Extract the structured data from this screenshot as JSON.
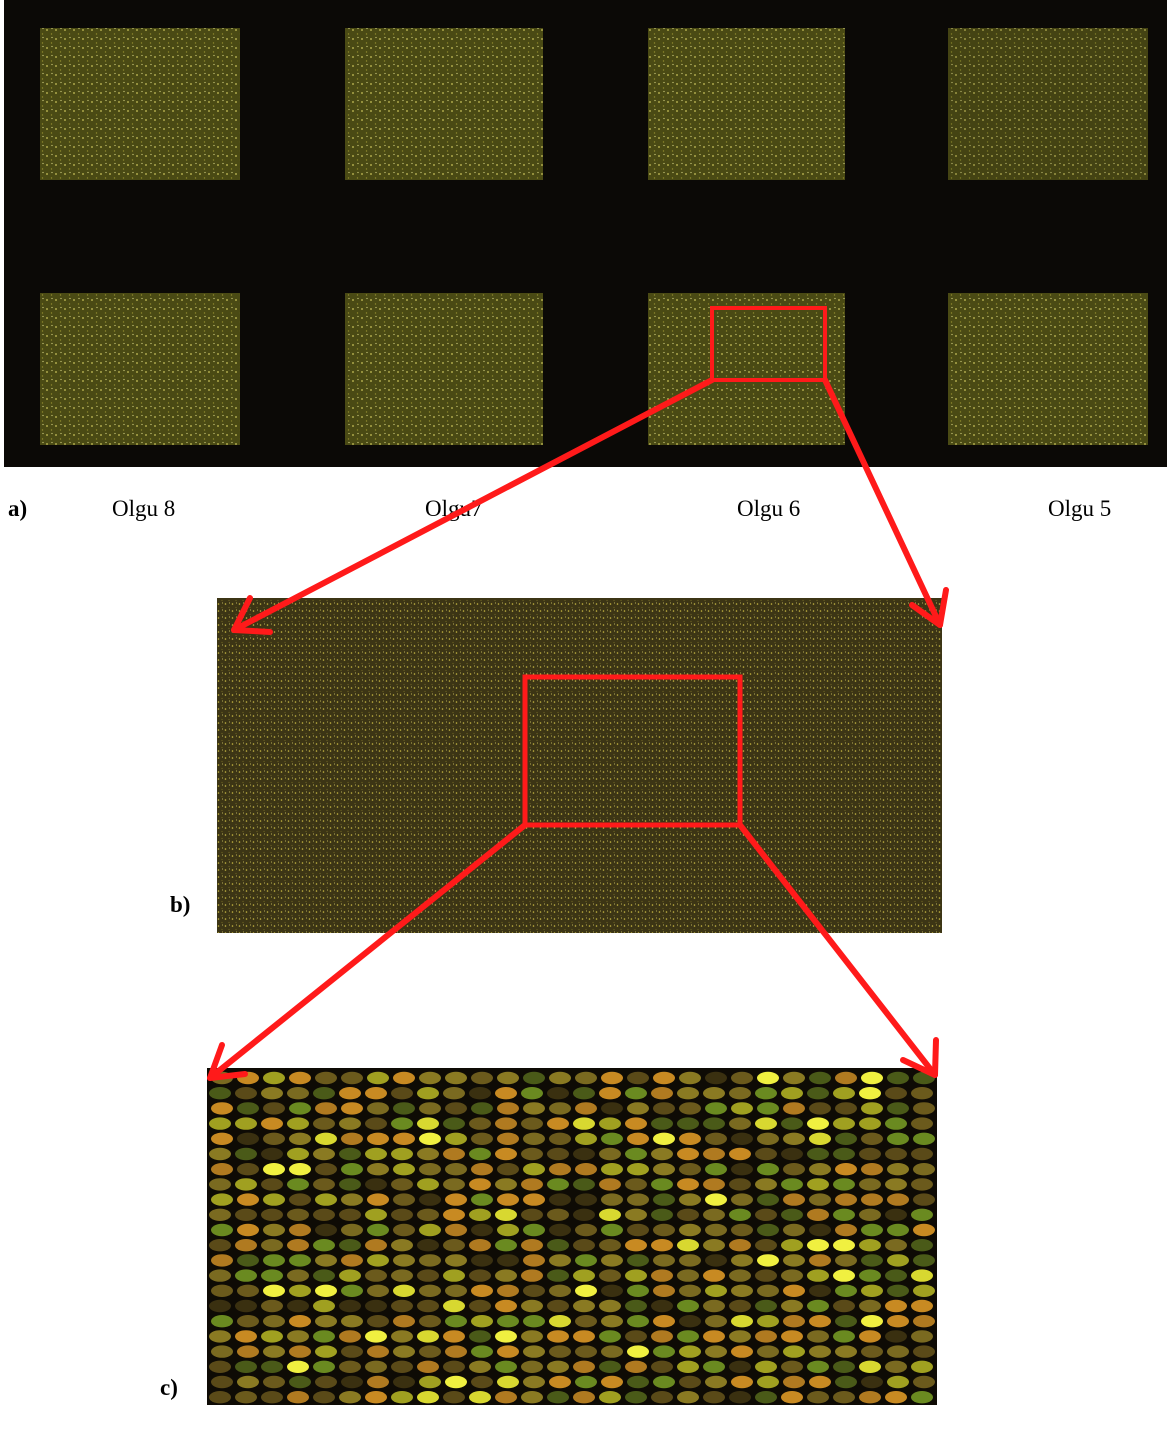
{
  "panel_a": {
    "label": "a)",
    "cases": [
      "Olgu 8",
      "Olgu7",
      "Olgu 6",
      "Olgu 5"
    ]
  },
  "panel_b": {
    "label": "b)"
  },
  "panel_c": {
    "label": "c)"
  }
}
